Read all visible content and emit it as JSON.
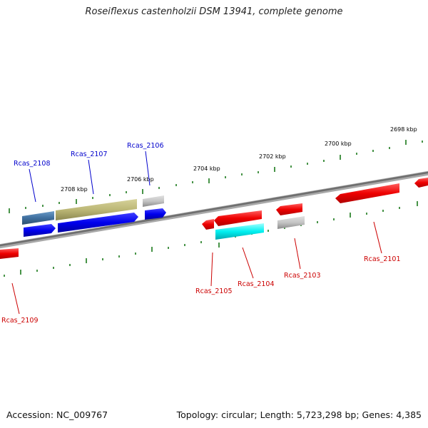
{
  "title": "Roseiflexus castenholzii DSM 13941, complete genome",
  "footer": {
    "accession": "Accession: NC_009767",
    "stats": "Topology: circular; Length: 5,723,298 bp; Genes: 4,385"
  },
  "colors": {
    "forward_strand_label": "#0000cc",
    "reverse_strand_label": "#cc0000",
    "backbone": "#888888",
    "tick": "#1a7a1a"
  },
  "scale_labels": [
    "2698 kbp",
    "2700 kbp",
    "2702 kbp",
    "2704 kbp",
    "2706 kbp",
    "2708 kbp"
  ],
  "genes": {
    "forward": [
      "Rcas_2106",
      "Rcas_2107",
      "Rcas_2108"
    ],
    "reverse": [
      "Rcas_2101",
      "Rcas_2103",
      "Rcas_2104",
      "Rcas_2105",
      "Rcas_2109"
    ]
  }
}
